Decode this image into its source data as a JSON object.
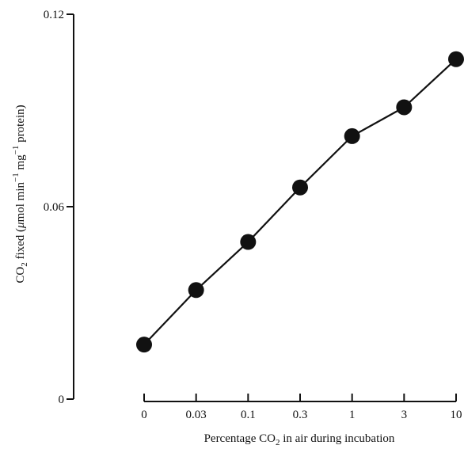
{
  "chart_data": {
    "type": "line",
    "title": "",
    "xlabel_parts": [
      "Percentage CO",
      "2",
      " in air during incubation"
    ],
    "ylabel_parts": [
      "CO",
      "2",
      " fixed (",
      "μ",
      "mol min",
      "−1",
      " mg",
      "−1",
      " protein)"
    ],
    "x_categories": [
      "0",
      "0.03",
      "0.1",
      "0.3",
      "1",
      "3",
      "10"
    ],
    "x": [
      "0",
      "0.03",
      "0.1",
      "0.3",
      "1",
      "3",
      "10"
    ],
    "y": [
      0.017,
      0.034,
      0.049,
      0.066,
      0.082,
      0.091,
      0.106
    ],
    "yticks": [
      0,
      0.06,
      0.12
    ],
    "ytick_labels": [
      "0",
      "0.06",
      "0.12"
    ],
    "ylim": [
      0,
      0.12
    ],
    "grid": false,
    "legend": "none",
    "marker": "filled-circle",
    "colors": {
      "ink": "#111111",
      "background": "#ffffff"
    }
  }
}
